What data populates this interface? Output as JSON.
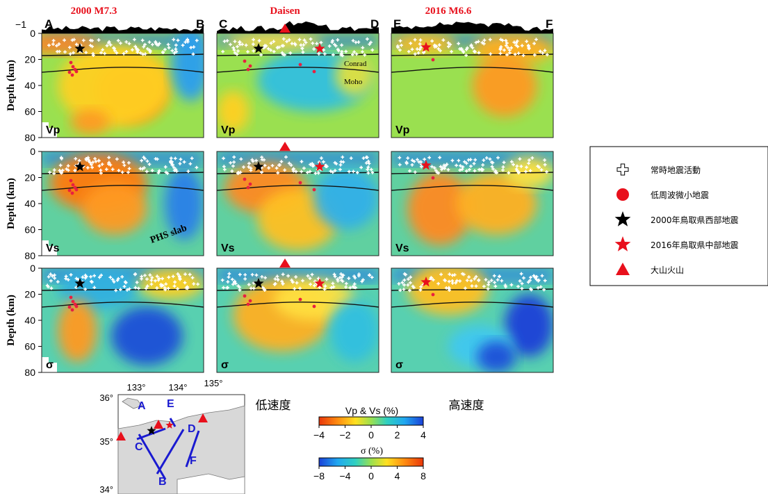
{
  "panels": {
    "section_letters": [
      "A",
      "B",
      "C",
      "D",
      "E",
      "F"
    ],
    "column_titles": [
      "2000 M7.3",
      "Daisen",
      "2016 M6.6"
    ],
    "topo_tick_label": "−1",
    "depth_ticks": [
      "0",
      "20",
      "40",
      "60",
      "80"
    ],
    "row_axis_label": "Depth (km)",
    "row_labels": [
      "Vp",
      "Vs",
      "σ"
    ],
    "annotations": {
      "conrad": "Conrad",
      "moho": "Moho",
      "phs_slab": "PHS slab"
    }
  },
  "map": {
    "lon_ticks": [
      "133°",
      "134°",
      "135°"
    ],
    "lat_ticks": [
      "36°",
      "35°",
      "34°"
    ],
    "line_labels": [
      "A",
      "B",
      "C",
      "D",
      "E",
      "F"
    ]
  },
  "colorbars": {
    "low_label": "低速度",
    "high_label": "高速度",
    "velocity": {
      "title": "Vp & Vs (%)",
      "ticks": [
        "−4",
        "−2",
        "0",
        "2",
        "4"
      ],
      "range": [
        -4,
        4
      ]
    },
    "sigma": {
      "title": "σ (%)",
      "ticks": [
        "−8",
        "−4",
        "0",
        "4",
        "8"
      ],
      "range": [
        -8,
        8
      ]
    }
  },
  "legend": {
    "items": [
      {
        "label": "常時地震活動",
        "symbol": "white-cross-icon"
      },
      {
        "label": "低周波微小地震",
        "symbol": "red-circle-icon"
      },
      {
        "label": "2000年鳥取県西部地震",
        "symbol": "black-star-icon"
      },
      {
        "label": "2016年鳥取県中部地震",
        "symbol": "red-star-icon"
      },
      {
        "label": "大山火山",
        "symbol": "red-triangle-icon"
      }
    ]
  },
  "colors": {
    "red": "#e8101c",
    "line_blue": "#1a1ad0"
  }
}
